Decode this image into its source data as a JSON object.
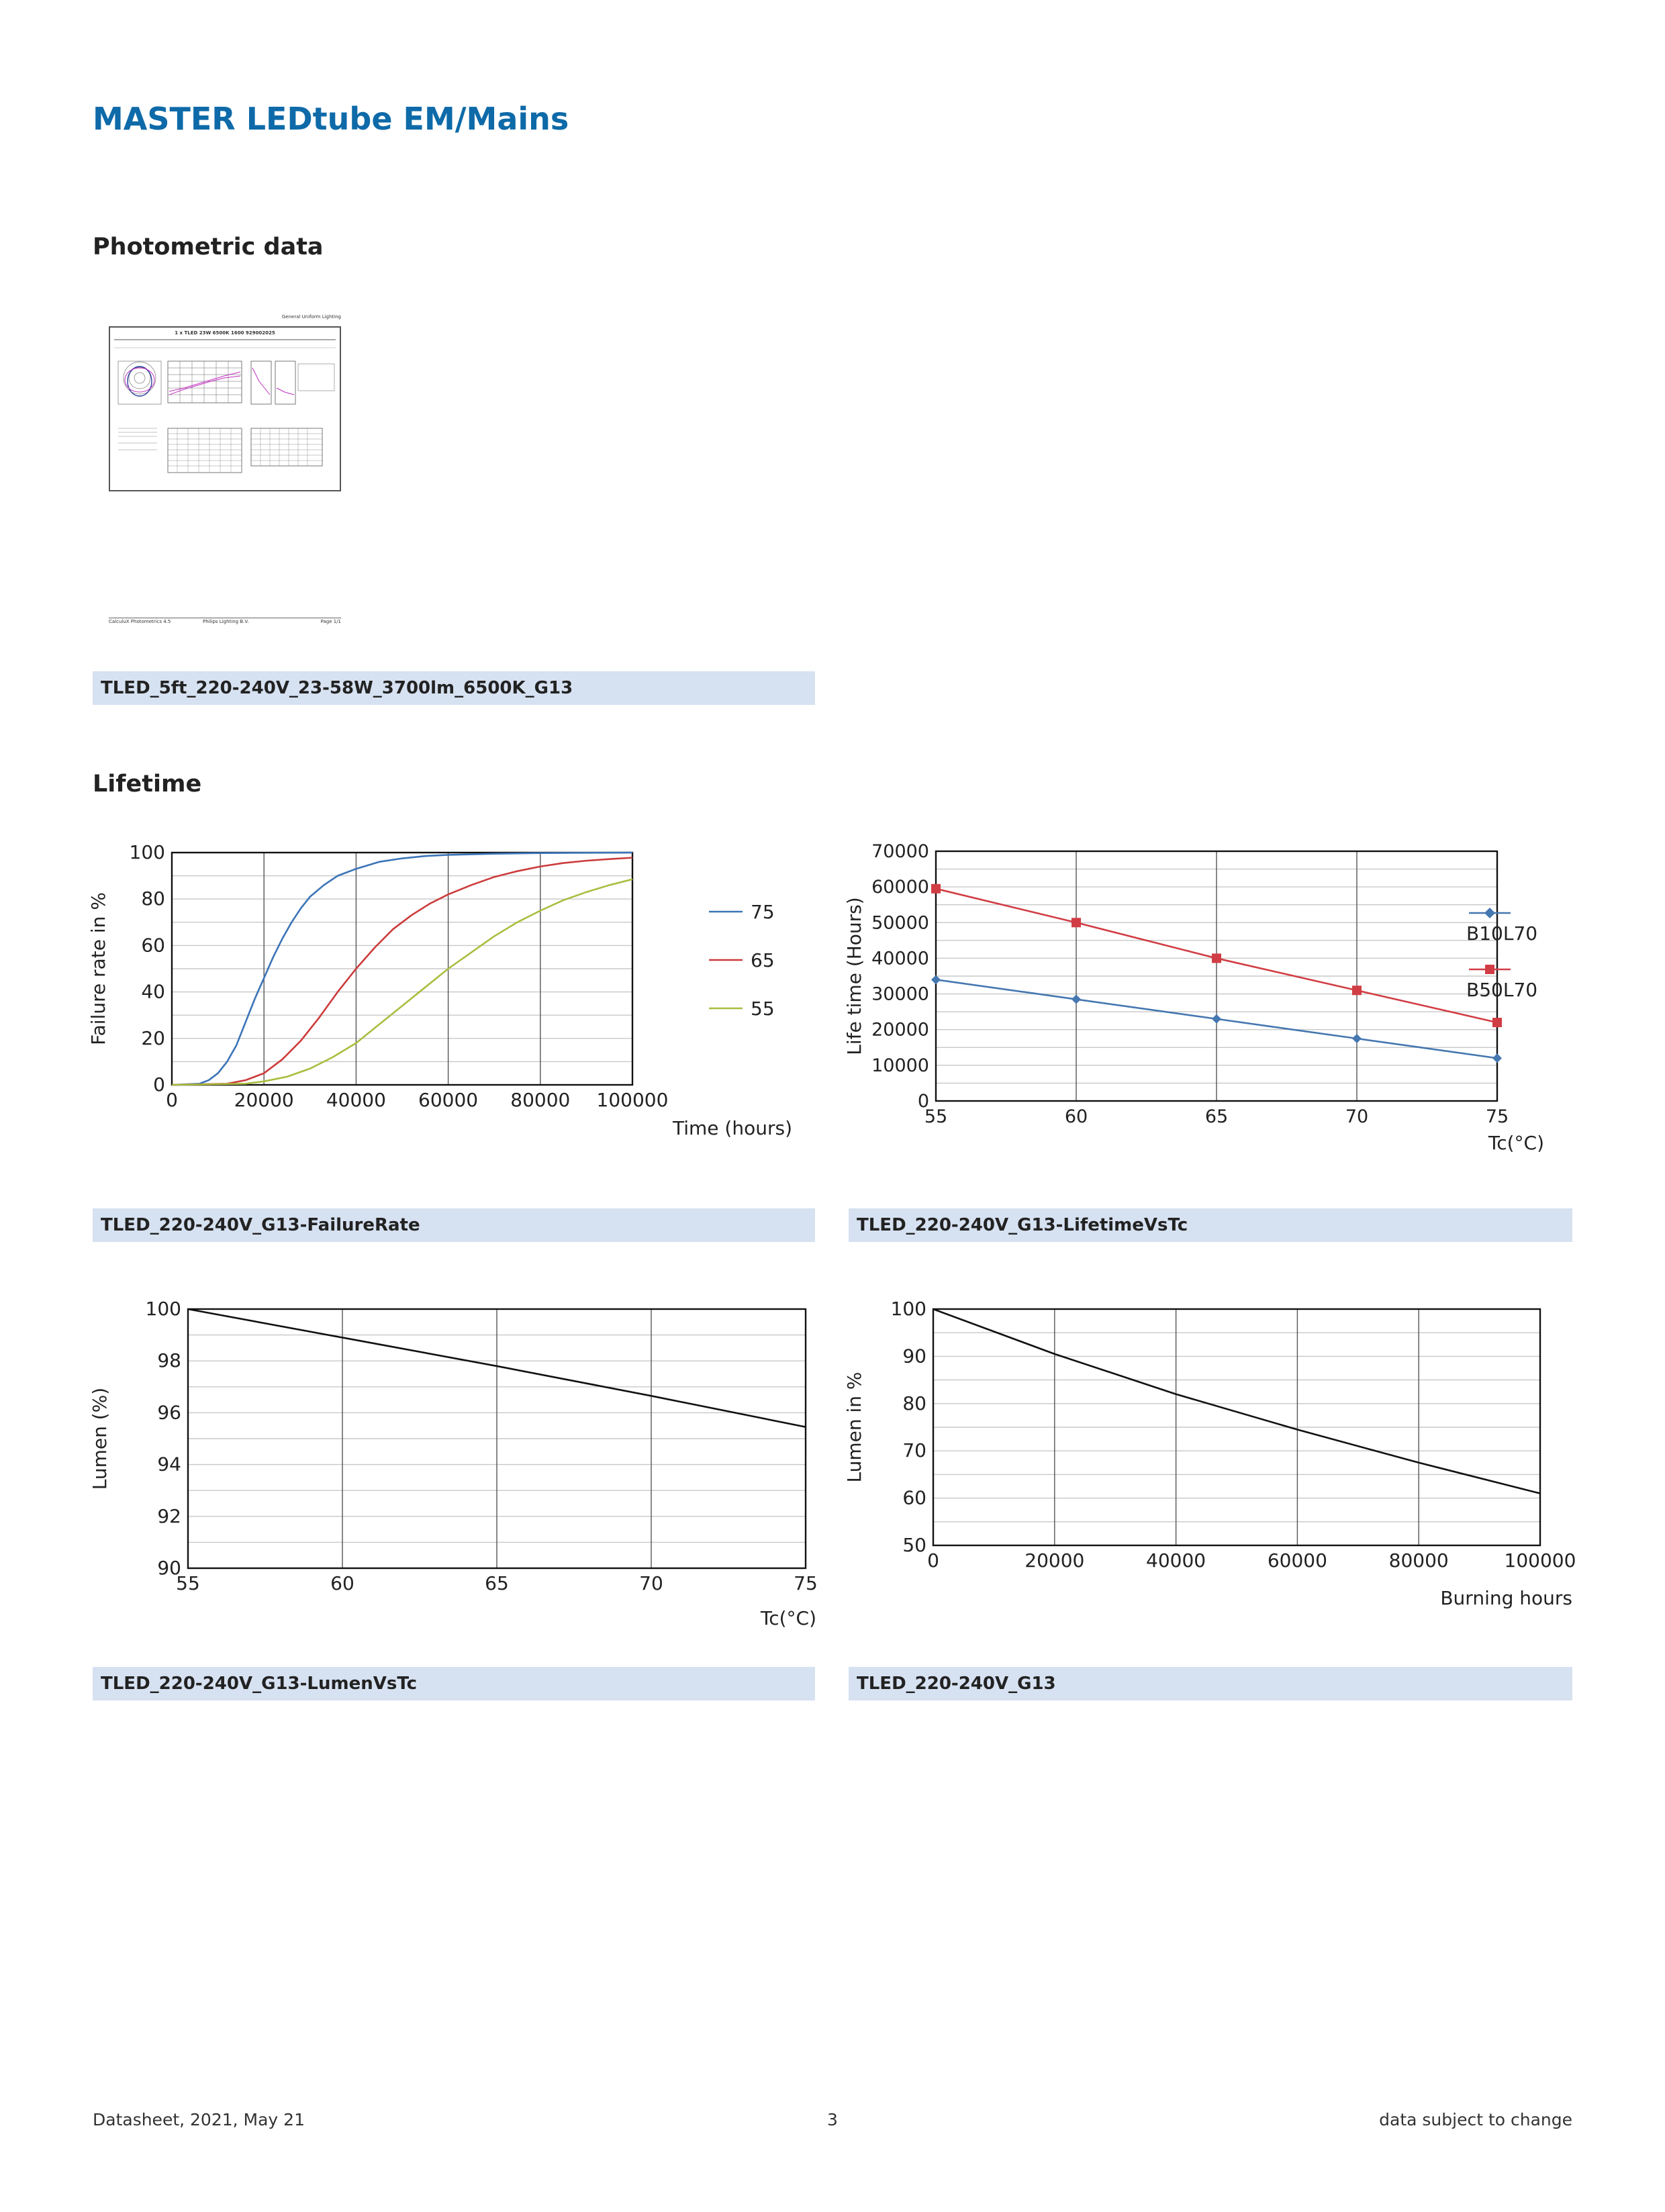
{
  "header": {
    "title": "MASTER LEDtube EM/Mains"
  },
  "sections": {
    "photometric": "Photometric data",
    "lifetime": "Lifetime"
  },
  "photometric": {
    "thumb_header": "General Uniform Lighting",
    "thumb_subheader": "1 x TLED 23W 6500K 1600 929002025",
    "thumb_footer_left": "CalculuX Photometrics 4.5",
    "thumb_footer_mid": "Philips Lighting B.V.",
    "thumb_footer_right": "Page 1/1",
    "caption": "TLED_5ft_220-240V_23-58W_3700lm_6500K_G13"
  },
  "chart_data": [
    {
      "id": "failure-rate",
      "type": "line",
      "title": "",
      "xlabel": "Time (hours)",
      "ylabel": "Failure rate in %",
      "xlim": [
        0,
        100000
      ],
      "ylim": [
        0,
        100
      ],
      "x_ticks": [
        "0",
        "20000",
        "40000",
        "60000",
        "80000",
        "100000"
      ],
      "y_ticks": [
        "0",
        "20",
        "40",
        "60",
        "80",
        "100"
      ],
      "grid": true,
      "legend": "right",
      "series": [
        {
          "name": "75",
          "color": "#3b74b8",
          "x": [
            0,
            6000,
            8000,
            10000,
            12000,
            14000,
            16000,
            18000,
            20000,
            22000,
            24000,
            26000,
            28000,
            30000,
            33000,
            36000,
            40000,
            45000,
            50000,
            55000,
            60000,
            70000,
            80000,
            90000,
            100000
          ],
          "y": [
            0,
            0.5,
            2,
            5,
            10,
            17,
            27,
            37,
            46,
            55,
            63,
            70,
            76,
            81,
            86,
            90,
            93,
            96,
            97.5,
            98.5,
            99,
            99.5,
            99.8,
            99.9,
            100
          ]
        },
        {
          "name": "65",
          "color": "#cc3b3b",
          "x": [
            0,
            12000,
            16000,
            20000,
            24000,
            28000,
            32000,
            36000,
            40000,
            44000,
            48000,
            52000,
            56000,
            60000,
            65000,
            70000,
            75000,
            80000,
            85000,
            90000,
            95000,
            100000
          ],
          "y": [
            0,
            0.5,
            2,
            5,
            11,
            19,
            29,
            40,
            50,
            59,
            67,
            73,
            78,
            82,
            86,
            89.5,
            92,
            94,
            95.5,
            96.5,
            97.2,
            97.8
          ]
        },
        {
          "name": "55",
          "color": "#a8be3e",
          "x": [
            0,
            16000,
            20000,
            25000,
            30000,
            35000,
            40000,
            45000,
            50000,
            55000,
            60000,
            65000,
            70000,
            75000,
            80000,
            85000,
            90000,
            95000,
            100000
          ],
          "y": [
            0,
            0.5,
            1.5,
            3.5,
            7,
            12,
            18,
            26,
            34,
            42,
            50,
            57,
            64,
            70,
            75,
            79.5,
            83,
            86,
            88.5
          ]
        }
      ],
      "caption": "TLED_220-240V_G13-FailureRate"
    },
    {
      "id": "lifetime-vs-tc",
      "type": "line",
      "title": "",
      "xlabel": "Tc(°C)",
      "ylabel": "Life time (Hours)",
      "xlim": [
        55,
        75
      ],
      "ylim": [
        0,
        70000
      ],
      "x_ticks": [
        "55",
        "60",
        "65",
        "70",
        "75"
      ],
      "y_ticks": [
        "0",
        "10000",
        "20000",
        "30000",
        "40000",
        "50000",
        "60000",
        "70000"
      ],
      "grid": true,
      "legend": "right",
      "series": [
        {
          "name": "B10L70",
          "color": "#4577b0",
          "marker": "diamond",
          "x": [
            55,
            60,
            65,
            70,
            75
          ],
          "y": [
            34000,
            28500,
            23000,
            17500,
            12000
          ]
        },
        {
          "name": "B50L70",
          "color": "#d13d44",
          "marker": "square",
          "x": [
            55,
            60,
            65,
            70,
            75
          ],
          "y": [
            59500,
            50000,
            40000,
            31000,
            22000
          ]
        }
      ],
      "caption": "TLED_220-240V_G13-LifetimeVsTc"
    },
    {
      "id": "lumen-vs-tc",
      "type": "line",
      "title": "",
      "xlabel": "Tc(°C)",
      "ylabel": "Lumen (%)",
      "xlim": [
        55,
        75
      ],
      "ylim": [
        90,
        100
      ],
      "x_ticks": [
        "55",
        "60",
        "65",
        "70",
        "75"
      ],
      "y_ticks": [
        "90",
        "92",
        "94",
        "96",
        "98",
        "100"
      ],
      "grid": true,
      "legend": "none",
      "series": [
        {
          "color": "#111111",
          "x": [
            55,
            60,
            65,
            70,
            75
          ],
          "y": [
            100,
            98.9,
            97.8,
            96.65,
            95.45
          ]
        }
      ],
      "caption": "TLED_220-240V_G13-LumenVsTc"
    },
    {
      "id": "lumen-vs-hours",
      "type": "line",
      "title": "",
      "xlabel": "Burning hours",
      "ylabel": "Lumen in %",
      "xlim": [
        0,
        100000
      ],
      "ylim": [
        50,
        100
      ],
      "x_ticks": [
        "0",
        "20000",
        "40000",
        "60000",
        "80000",
        "100000"
      ],
      "y_ticks": [
        "50",
        "60",
        "70",
        "80",
        "90",
        "100"
      ],
      "grid": true,
      "legend": "none",
      "series": [
        {
          "color": "#111111",
          "x": [
            0,
            20000,
            40000,
            60000,
            80000,
            100000
          ],
          "y": [
            100,
            90.5,
            82,
            74.5,
            67.5,
            61
          ]
        }
      ],
      "caption": "TLED_220-240V_G13"
    }
  ],
  "footer": {
    "left": "Datasheet, 2021, May 21",
    "center": "3",
    "right": "data subject to change"
  }
}
